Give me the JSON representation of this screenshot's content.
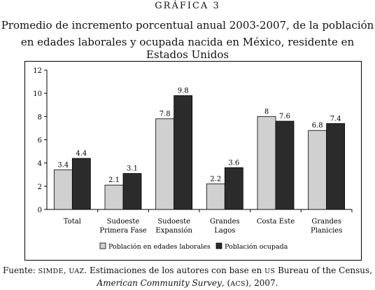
{
  "figure_label": "GRÁFICA 3",
  "chart_data": {
    "type": "bar",
    "title_lines": [
      "Promedio de incremento porcentual anual 2003-2007, de la población",
      "en edades laborales y ocupada nacida en México, residente en Estados Unidos"
    ],
    "categories": [
      [
        "Total"
      ],
      [
        "Sudoeste",
        "Primera Fase"
      ],
      [
        "Sudoeste",
        "Expansión"
      ],
      [
        "Grandes",
        "Lagos"
      ],
      [
        "Costa Este"
      ],
      [
        "Grandes",
        "Planicies"
      ]
    ],
    "series": [
      {
        "name": "Población en edades laborales",
        "color": "#d0d0d0",
        "values": [
          3.4,
          2.1,
          7.8,
          2.2,
          8,
          6.8
        ]
      },
      {
        "name": "Población ocupada",
        "color": "#2b2b2b",
        "values": [
          4.4,
          3.1,
          9.8,
          3.6,
          7.6,
          7.4
        ]
      }
    ],
    "ylim": [
      0,
      12
    ],
    "yticks": [
      0,
      2,
      4,
      6,
      8,
      10,
      12
    ],
    "legend_position": "bottom",
    "grid": false
  },
  "source": {
    "prefix": "Fuente: ",
    "org1": "SIMDE",
    "sep1": ", ",
    "org2": "UAZ",
    "mid": ". Estimaciones de los autores con base en ",
    "us": "US",
    "suffix1": " Bureau of the Census,",
    "survey": "American Community Survey",
    "sep2": ", (",
    "acs": "ACS",
    "suffix2": "), 2007."
  }
}
